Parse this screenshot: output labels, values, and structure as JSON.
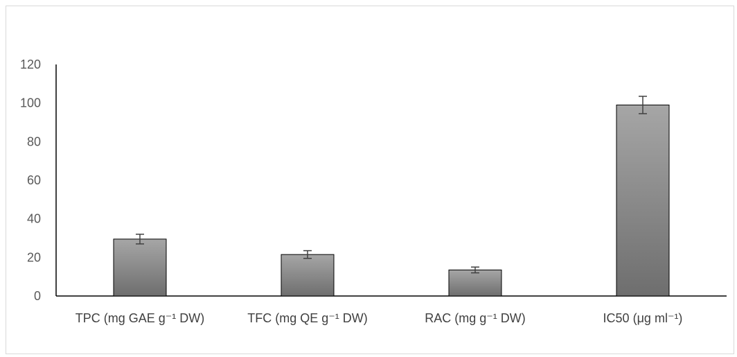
{
  "chart_data": {
    "type": "bar",
    "title": "",
    "xlabel": "",
    "ylabel": "",
    "ylim": [
      0,
      120
    ],
    "yticks": [
      0,
      20,
      40,
      60,
      80,
      100,
      120
    ],
    "categories": [
      "TPC  (mg GAE g⁻¹ DW)",
      "TFC (mg QE g⁻¹ DW)",
      "RAC (mg g⁻¹ DW)",
      "IC50 (μg ml⁻¹)"
    ],
    "values": [
      29.5,
      21.5,
      13.5,
      99
    ],
    "errors": [
      2.5,
      2.0,
      1.5,
      4.5
    ],
    "bar_color": "#8c8c8c",
    "grid": false,
    "legend": "none"
  }
}
